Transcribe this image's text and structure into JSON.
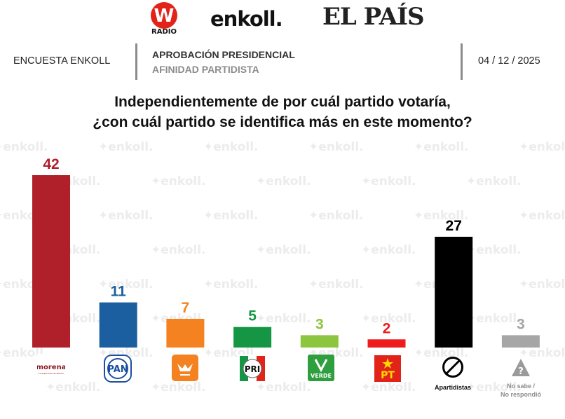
{
  "brands": {
    "w_letter": "W",
    "w_sub": "RADIO",
    "enkoll": "enkoll.",
    "elpais": "EL PAÍS"
  },
  "header": {
    "left": "ENCUESTA ENKOLL",
    "mid_title": "APROBACIÓN PRESIDENCIAL",
    "mid_subtitle": "AFINIDAD PARTIDISTA",
    "date": "04 / 12 / 2025"
  },
  "question": {
    "line1": "Independientemente de por cuál partido votaría,",
    "line2": "¿con cuál partido se identifica más en este momento?"
  },
  "watermark": "enkoll.",
  "logos": {
    "morena": "morena",
    "morena_sub": "La esperanza de México",
    "pan": "PAN",
    "pri": "PRI",
    "verde": "VERDE",
    "pt": "PT",
    "apartidistas": "Apartidistas",
    "nosabe1": "No sabe /",
    "nosabe2": "No respondió",
    "question_mark": "?"
  },
  "chart_data": {
    "type": "bar",
    "categories": [
      "Morena",
      "PAN",
      "MC",
      "PRI",
      "Verde",
      "PT",
      "Apartidistas",
      "No sabe / No respondió"
    ],
    "values": [
      42,
      11,
      7,
      5,
      3,
      2,
      27,
      3
    ],
    "colors": [
      "#b0202a",
      "#1c5fa0",
      "#f58220",
      "#149645",
      "#8cc63f",
      "#ee1c1c",
      "#000000",
      "#a6a6a6"
    ],
    "data_labels": [
      "42",
      "11",
      "7",
      "5",
      "3",
      "2",
      "27",
      "3"
    ],
    "title": "",
    "ylim": [
      0,
      42
    ],
    "grid": false,
    "legend": "none"
  }
}
